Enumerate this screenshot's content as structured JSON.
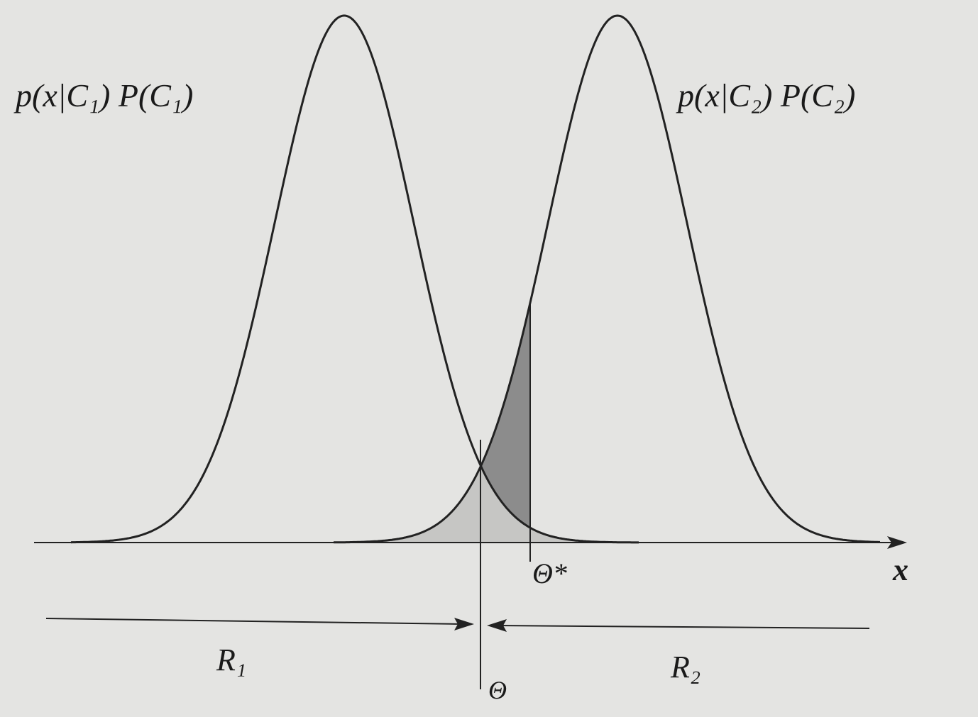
{
  "labels": {
    "class1": "p(x|C₁) P(C₁)",
    "class2": "p(x|C₂) P(C₂)",
    "theta_star": "Θ*",
    "axis": "x",
    "region1": "R₁",
    "region2": "R₂",
    "theta": "Θ"
  }
}
